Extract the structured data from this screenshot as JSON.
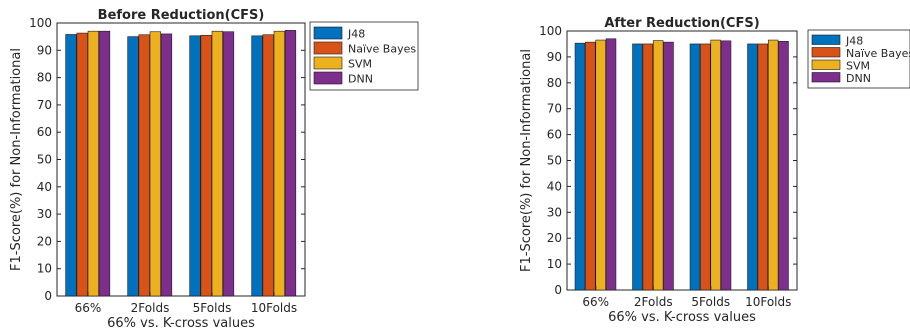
{
  "chart_data": [
    {
      "type": "bar",
      "title": "Before Reduction(CFS)",
      "xlabel": "66% vs. K-cross values",
      "ylabel": "F1-Score(%) for Non-Informational",
      "ylim": [
        0,
        100
      ],
      "yticks": [
        0,
        10,
        20,
        30,
        40,
        50,
        60,
        70,
        80,
        90,
        100
      ],
      "categories": [
        "66%",
        "2Folds",
        "5Folds",
        "10Folds"
      ],
      "legend_position": "outside-top-right",
      "grid": false,
      "series": [
        {
          "name": "J48",
          "color": "#0072BD",
          "values": [
            95.8,
            95.0,
            95.3,
            95.3
          ]
        },
        {
          "name": "Naïve Bayes",
          "color": "#D95319",
          "values": [
            96.3,
            95.7,
            95.5,
            95.7
          ]
        },
        {
          "name": "SVM",
          "color": "#EDB120",
          "values": [
            97.0,
            96.8,
            97.0,
            97.0
          ]
        },
        {
          "name": "DNN",
          "color": "#7E2F8E",
          "values": [
            97.0,
            96.0,
            96.8,
            97.3
          ]
        }
      ]
    },
    {
      "type": "bar",
      "title": "After Reduction(CFS)",
      "xlabel": "66% vs. K-cross values",
      "ylabel": "F1-Score(%) for Non-Informational",
      "ylim": [
        0,
        100
      ],
      "yticks": [
        0,
        10,
        20,
        30,
        40,
        50,
        60,
        70,
        80,
        90,
        100
      ],
      "categories": [
        "66%",
        "2Folds",
        "5Folds",
        "10Folds"
      ],
      "legend_position": "outside-top-right",
      "grid": false,
      "series": [
        {
          "name": "J48",
          "color": "#0072BD",
          "values": [
            95.3,
            95.0,
            95.0,
            95.0
          ]
        },
        {
          "name": "Naïve Bayes",
          "color": "#D95319",
          "values": [
            95.7,
            95.0,
            95.0,
            95.0
          ]
        },
        {
          "name": "SVM",
          "color": "#EDB120",
          "values": [
            96.5,
            96.3,
            96.5,
            96.5
          ]
        },
        {
          "name": "DNN",
          "color": "#7E2F8E",
          "values": [
            97.0,
            95.7,
            96.2,
            96.0
          ]
        }
      ]
    }
  ]
}
